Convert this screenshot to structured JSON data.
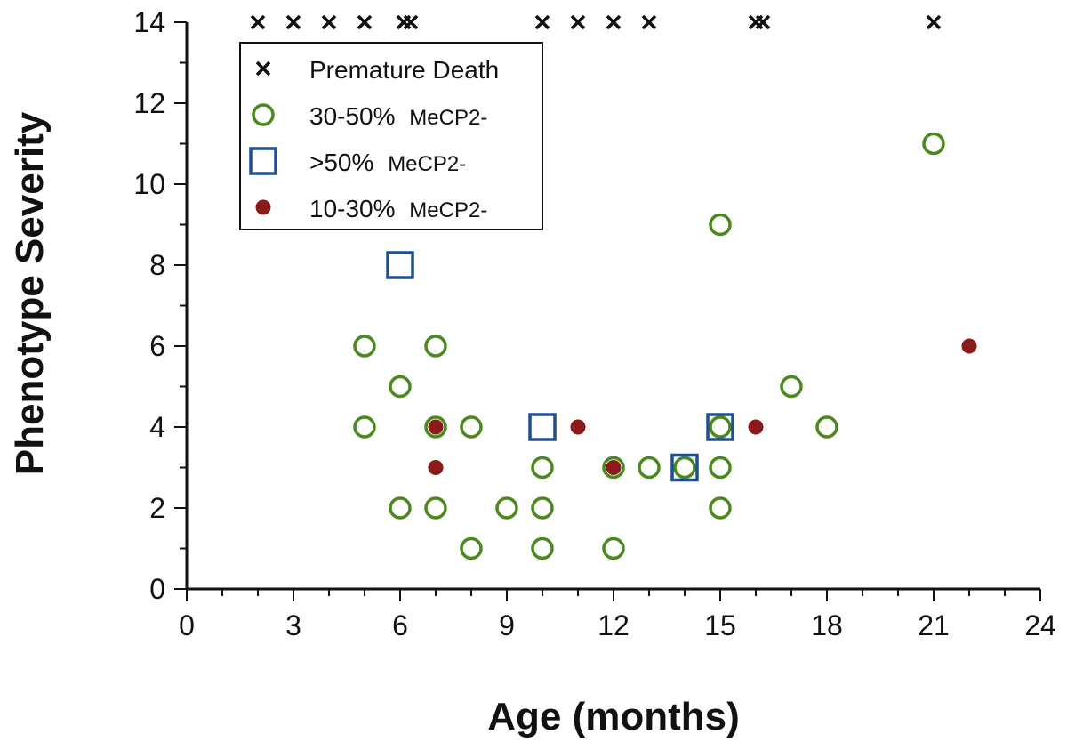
{
  "chart_data": {
    "type": "scatter",
    "title": "",
    "xlabel": "Age (months)",
    "ylabel": "Phenotype Severity",
    "xlim": [
      0,
      24
    ],
    "ylim": [
      0,
      14
    ],
    "xticks": [
      0,
      3,
      6,
      9,
      12,
      15,
      18,
      21,
      24
    ],
    "yticks": [
      0,
      2,
      4,
      6,
      8,
      10,
      12,
      14
    ],
    "grid": false,
    "legend_position": "top-left",
    "series": [
      {
        "name": "Premature Death",
        "marker": "x",
        "color": "#111111",
        "points": [
          [
            2,
            14
          ],
          [
            3,
            14
          ],
          [
            4,
            14
          ],
          [
            5,
            14
          ],
          [
            6.1,
            14
          ],
          [
            6.3,
            14
          ],
          [
            10,
            14
          ],
          [
            11,
            14
          ],
          [
            12,
            14
          ],
          [
            13,
            14
          ],
          [
            16,
            14
          ],
          [
            16.2,
            14
          ],
          [
            21,
            14
          ]
        ]
      },
      {
        "name": "30-50%",
        "name_suffix": "MeCP2-",
        "marker": "circle-open",
        "color": "#4a8a1c",
        "points": [
          [
            5,
            6
          ],
          [
            5,
            4
          ],
          [
            6,
            5
          ],
          [
            6,
            2
          ],
          [
            7,
            6
          ],
          [
            7,
            4
          ],
          [
            7,
            2
          ],
          [
            8,
            4
          ],
          [
            8,
            1
          ],
          [
            9,
            2
          ],
          [
            10,
            3
          ],
          [
            10,
            2
          ],
          [
            10,
            1
          ],
          [
            12,
            3
          ],
          [
            12,
            1
          ],
          [
            13,
            3
          ],
          [
            14,
            3
          ],
          [
            15,
            9
          ],
          [
            15,
            4
          ],
          [
            15,
            3
          ],
          [
            15,
            2
          ],
          [
            17,
            5
          ],
          [
            18,
            4
          ],
          [
            21,
            11
          ]
        ]
      },
      {
        "name": ">50%",
        "name_suffix": "MeCP2-",
        "marker": "square-open",
        "color": "#1f4f8f",
        "points": [
          [
            6,
            8
          ],
          [
            10,
            4
          ],
          [
            14,
            3
          ],
          [
            15,
            4
          ]
        ]
      },
      {
        "name": "10-30%",
        "name_suffix": "MeCP2-",
        "marker": "dot",
        "color": "#8b1a1a",
        "points": [
          [
            7,
            4
          ],
          [
            7,
            3
          ],
          [
            11,
            4
          ],
          [
            12,
            3
          ],
          [
            16,
            4
          ],
          [
            22,
            6
          ]
        ]
      }
    ]
  }
}
